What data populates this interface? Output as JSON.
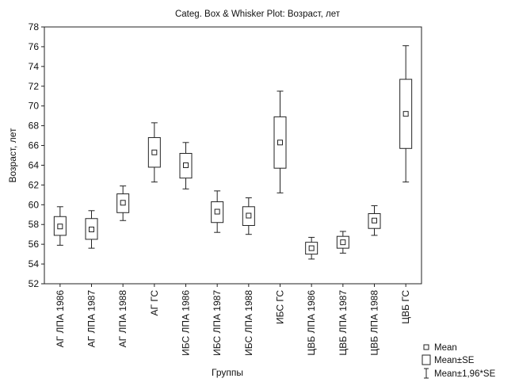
{
  "chart_data": {
    "type": "box",
    "title": "Categ. Box & Whisker Plot: Возраст, лет",
    "xlabel": "Группы",
    "ylabel": "Возраст, лет",
    "ylim": [
      52,
      78
    ],
    "yticks": [
      52,
      54,
      56,
      58,
      60,
      62,
      64,
      66,
      68,
      70,
      72,
      74,
      76,
      78
    ],
    "grid": false,
    "legend_position": "bottom-right",
    "legend": [
      {
        "key": "mean",
        "label": "Mean"
      },
      {
        "key": "se",
        "label": "Mean±SE"
      },
      {
        "key": "ci",
        "label": "Mean±1,96*SE"
      }
    ],
    "categories": [
      "АГ ЛПА 1986",
      "АГ ЛПА 1987",
      "АГ ЛПА 1988",
      "АГ ГС",
      "ИБС ЛПА 1986",
      "ИБС ЛПА 1987",
      "ИБС ЛПА 1988",
      "ИБС ГС",
      "ЦВБ ЛПА 1986",
      "ЦВБ ЛПА 1987",
      "ЦВБ ЛПА 1988",
      "ЦВБ ГС"
    ],
    "series": [
      {
        "name": "Mean",
        "values": [
          57.8,
          57.5,
          60.2,
          65.3,
          64.0,
          59.3,
          58.9,
          66.3,
          55.6,
          56.2,
          58.4,
          69.2
        ]
      },
      {
        "name": "Mean-SE",
        "values": [
          56.9,
          56.5,
          59.2,
          63.8,
          62.7,
          58.2,
          57.9,
          63.7,
          55.0,
          55.6,
          57.6,
          65.7
        ]
      },
      {
        "name": "Mean+SE",
        "values": [
          58.8,
          58.6,
          61.1,
          66.8,
          65.2,
          60.3,
          59.8,
          68.9,
          56.2,
          56.8,
          59.1,
          72.7
        ]
      },
      {
        "name": "Mean-1,96*SE",
        "values": [
          55.9,
          55.6,
          58.4,
          62.3,
          61.6,
          57.2,
          57.0,
          61.2,
          54.5,
          55.1,
          56.9,
          62.3
        ]
      },
      {
        "name": "Mean+1,96*SE",
        "values": [
          59.8,
          59.4,
          61.9,
          68.3,
          66.3,
          61.4,
          60.7,
          71.5,
          56.7,
          57.3,
          59.9,
          76.1
        ]
      }
    ]
  }
}
